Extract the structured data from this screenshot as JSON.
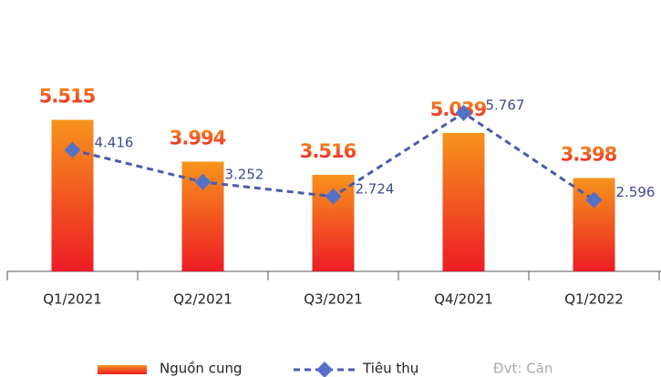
{
  "chart_data": {
    "type": "bar",
    "categories": [
      "Q1/2021",
      "Q2/2021",
      "Q3/2021",
      "Q4/2021",
      "Q1/2022"
    ],
    "series": [
      {
        "name": "Nguồn cung",
        "type": "bar",
        "color": [
          "#f7941d",
          "#ed1c24"
        ],
        "values": [
          5515,
          3994,
          3516,
          5039,
          3398
        ],
        "value_labels": [
          "5.515",
          "3.994",
          "3.516",
          "5.039",
          "3.398"
        ]
      },
      {
        "name": "Tiêu thụ",
        "type": "line",
        "color": "#4a5bab",
        "values": [
          4416,
          3252,
          2724,
          5767,
          2596
        ],
        "value_labels": [
          "4.416",
          "3.252",
          "2.724",
          "5.767",
          "2.596"
        ]
      }
    ],
    "note": "Đvt: Căn"
  }
}
